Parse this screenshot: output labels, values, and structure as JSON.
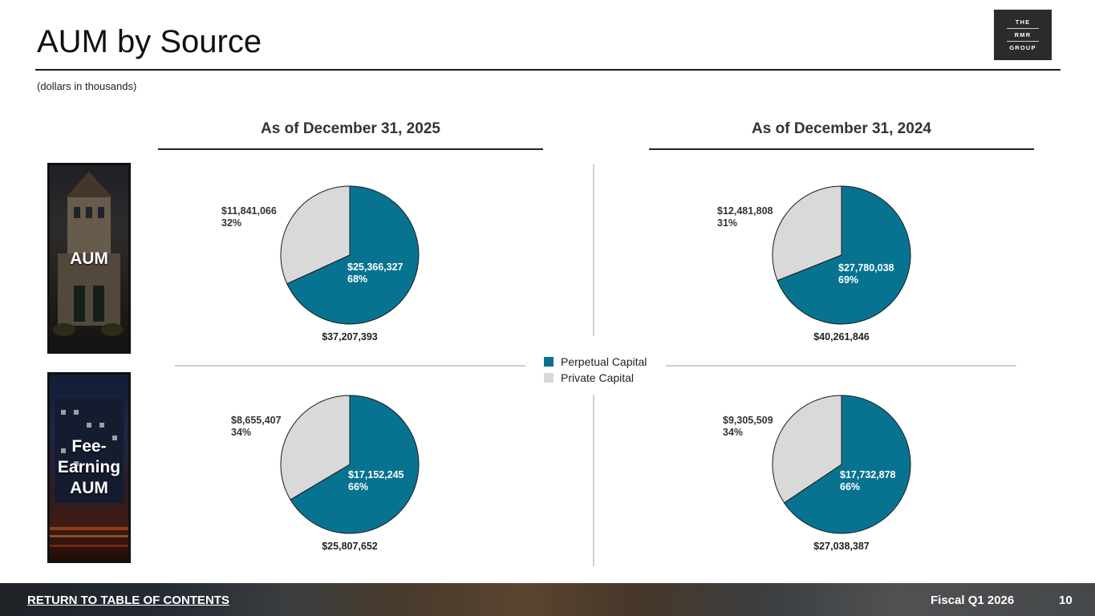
{
  "header": {
    "title": "AUM by Source",
    "subtitle": "(dollars in thousands)",
    "logo_lines": [
      "THE",
      "RMR",
      "GROUP"
    ]
  },
  "columns": [
    {
      "heading": "As of December 31, 2025"
    },
    {
      "heading": "As of December 31, 2024"
    }
  ],
  "rows": [
    {
      "label": "AUM"
    },
    {
      "label_lines": [
        "Fee-",
        "Earning",
        "AUM"
      ]
    }
  ],
  "legend": {
    "items": [
      {
        "label": "Perpetual Capital",
        "color": "#087391"
      },
      {
        "label": "Private Capital",
        "color": "#d9d9d9"
      }
    ]
  },
  "chart_data": [
    {
      "type": "pie",
      "title": "AUM — As of December 31, 2025",
      "total": "$37,207,393",
      "slices": [
        {
          "name": "Perpetual Capital",
          "value": 25366327,
          "value_label": "$25,366,327",
          "pct_label": "68%"
        },
        {
          "name": "Private Capital",
          "value": 11841066,
          "value_label": "$11,841,066",
          "pct_label": "32%"
        }
      ]
    },
    {
      "type": "pie",
      "title": "AUM — As of December 31, 2024",
      "total": "$40,261,846",
      "slices": [
        {
          "name": "Perpetual Capital",
          "value": 27780038,
          "value_label": "$27,780,038",
          "pct_label": "69%"
        },
        {
          "name": "Private Capital",
          "value": 12481808,
          "value_label": "$12,481,808",
          "pct_label": "31%"
        }
      ]
    },
    {
      "type": "pie",
      "title": "Fee-Earning AUM — As of December 31, 2025",
      "total": "$25,807,652",
      "slices": [
        {
          "name": "Perpetual Capital",
          "value": 17152245,
          "value_label": "$17,152,245",
          "pct_label": "66%"
        },
        {
          "name": "Private Capital",
          "value": 8655407,
          "value_label": "$8,655,407",
          "pct_label": "34%"
        }
      ]
    },
    {
      "type": "pie",
      "title": "Fee-Earning AUM — As of December 31, 2024",
      "total": "$27,038,387",
      "slices": [
        {
          "name": "Perpetual Capital",
          "value": 17732878,
          "value_label": "$17,732,878",
          "pct_label": "66%"
        },
        {
          "name": "Private Capital",
          "value": 9305509,
          "value_label": "$9,305,509",
          "pct_label": "34%"
        }
      ]
    }
  ],
  "footer": {
    "toc_link": "RETURN TO TABLE OF CONTENTS",
    "period": "Fiscal Q1 2026",
    "page_number": "10"
  }
}
